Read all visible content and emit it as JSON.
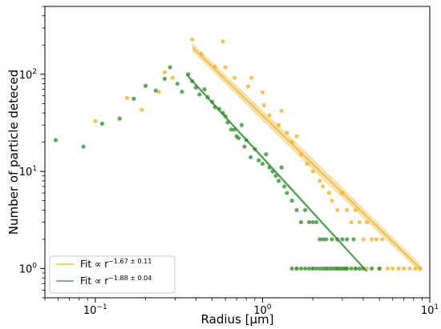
{
  "chart_data": {
    "type": "scatter",
    "title": "",
    "xlabel": "Radius [μm]",
    "ylabel": "Number of particle deteced",
    "xscale": "log",
    "yscale": "log",
    "xlim": [
      0.05,
      10
    ],
    "ylim": [
      0.5,
      500
    ],
    "x_tick_labels": [
      {
        "value": 0.1,
        "base": "10",
        "exp": "−1"
      },
      {
        "value": 1,
        "base": "10",
        "exp": "0"
      },
      {
        "value": 10,
        "base": "10",
        "exp": "1"
      }
    ],
    "y_tick_labels": [
      {
        "value": 1,
        "base": "10",
        "exp": "0"
      },
      {
        "value": 10,
        "base": "10",
        "exp": "1"
      },
      {
        "value": 100,
        "base": "10",
        "exp": "2"
      }
    ],
    "grid": false,
    "legend_position": "lower-left",
    "colors": {
      "orange": "#f0b323",
      "green": "#2e8b2e",
      "orange_band": "#f6d68e"
    },
    "series": [
      {
        "color": "orange",
        "kind": "points",
        "points": [
          [
            0.1,
            33
          ],
          [
            0.155,
            57
          ],
          [
            0.19,
            43
          ],
          [
            0.24,
            66
          ],
          [
            0.26,
            105
          ],
          [
            0.29,
            92
          ],
          [
            0.38,
            228
          ],
          [
            0.43,
            162
          ],
          [
            0.52,
            120
          ],
          [
            0.58,
            218
          ],
          [
            0.6,
            118
          ],
          [
            0.68,
            92
          ],
          [
            0.82,
            75
          ],
          [
            0.86,
            92
          ],
          [
            1.0,
            65
          ],
          [
            1.02,
            48
          ],
          [
            1.1,
            38
          ],
          [
            1.25,
            30
          ],
          [
            1.3,
            42
          ],
          [
            1.4,
            25
          ],
          [
            1.5,
            20
          ],
          [
            1.6,
            23
          ],
          [
            1.7,
            15
          ],
          [
            1.85,
            12
          ],
          [
            2.0,
            10
          ],
          [
            2.2,
            8
          ],
          [
            2.3,
            7
          ],
          [
            2.5,
            6
          ],
          [
            2.6,
            5
          ],
          [
            2.8,
            4
          ],
          [
            3.0,
            6
          ],
          [
            3.2,
            4
          ],
          [
            3.4,
            3
          ],
          [
            3.6,
            4
          ],
          [
            3.8,
            3
          ],
          [
            4.0,
            2
          ],
          [
            4.2,
            3
          ],
          [
            4.5,
            2
          ],
          [
            4.8,
            2
          ],
          [
            5.2,
            2
          ],
          [
            5.6,
            1
          ],
          [
            6.0,
            1
          ],
          [
            6.5,
            1
          ],
          [
            7.0,
            1
          ],
          [
            7.6,
            1
          ],
          [
            8.2,
            1
          ],
          [
            8.8,
            1
          ],
          [
            1.6,
            1
          ],
          [
            2.0,
            1
          ],
          [
            2.4,
            1
          ],
          [
            2.8,
            1
          ],
          [
            3.2,
            1
          ],
          [
            3.6,
            1
          ],
          [
            4.2,
            1
          ],
          [
            5.0,
            1
          ]
        ]
      },
      {
        "color": "green",
        "kind": "points",
        "points": [
          [
            0.058,
            21
          ],
          [
            0.085,
            18
          ],
          [
            0.11,
            31
          ],
          [
            0.14,
            35
          ],
          [
            0.17,
            56
          ],
          [
            0.2,
            76
          ],
          [
            0.23,
            68
          ],
          [
            0.26,
            90
          ],
          [
            0.28,
            118
          ],
          [
            0.31,
            80
          ],
          [
            0.33,
            66
          ],
          [
            0.36,
            100
          ],
          [
            0.38,
            85
          ],
          [
            0.4,
            73
          ],
          [
            0.42,
            62
          ],
          [
            0.45,
            70
          ],
          [
            0.47,
            58
          ],
          [
            0.5,
            52
          ],
          [
            0.52,
            46
          ],
          [
            0.55,
            44
          ],
          [
            0.58,
            40
          ],
          [
            0.6,
            37
          ],
          [
            0.62,
            32
          ],
          [
            0.65,
            27
          ],
          [
            0.68,
            27
          ],
          [
            0.7,
            23
          ],
          [
            0.72,
            22
          ],
          [
            0.75,
            30
          ],
          [
            0.78,
            18
          ],
          [
            0.8,
            21
          ],
          [
            0.85,
            14
          ],
          [
            0.9,
            17
          ],
          [
            0.95,
            13
          ],
          [
            1.0,
            12
          ],
          [
            1.05,
            15
          ],
          [
            1.1,
            11
          ],
          [
            1.15,
            10
          ],
          [
            1.2,
            9
          ],
          [
            1.25,
            8
          ],
          [
            1.3,
            11
          ],
          [
            1.35,
            7
          ],
          [
            1.4,
            6
          ],
          [
            1.5,
            5
          ],
          [
            1.6,
            4
          ],
          [
            1.7,
            3
          ],
          [
            1.8,
            4
          ],
          [
            1.9,
            3
          ],
          [
            2.0,
            3
          ],
          [
            2.1,
            3
          ],
          [
            2.2,
            2
          ],
          [
            2.3,
            2
          ],
          [
            2.4,
            2
          ],
          [
            2.6,
            2
          ],
          [
            2.8,
            2
          ],
          [
            3.0,
            2
          ],
          [
            3.2,
            2
          ],
          [
            3.5,
            2
          ],
          [
            1.5,
            1
          ],
          [
            1.6,
            1
          ],
          [
            1.7,
            1
          ],
          [
            1.8,
            1
          ],
          [
            1.9,
            1
          ],
          [
            2.0,
            1
          ],
          [
            2.1,
            1
          ],
          [
            2.2,
            1
          ],
          [
            2.3,
            1
          ],
          [
            2.4,
            1
          ],
          [
            2.5,
            1
          ],
          [
            2.6,
            1
          ],
          [
            2.7,
            1
          ],
          [
            2.8,
            1
          ],
          [
            2.9,
            1
          ],
          [
            3.0,
            1
          ],
          [
            3.1,
            1
          ],
          [
            3.2,
            1
          ],
          [
            3.4,
            1
          ],
          [
            3.6,
            1
          ],
          [
            3.8,
            1
          ],
          [
            4.0,
            1
          ],
          [
            4.5,
            1
          ],
          [
            5.0,
            1
          ]
        ]
      },
      {
        "name": "Fit ∝ r",
        "legend_exponent": "−1.67 ± 0.11",
        "color": "orange",
        "kind": "fit",
        "x_range": [
          0.38,
          8.8
        ],
        "y_start": 190,
        "slope": -1.67,
        "band": [
          0.11,
          0.08
        ]
      },
      {
        "name": "Fit ∝ r",
        "legend_exponent": "−1.88 ± 0.04",
        "color": "green",
        "kind": "fit",
        "x_range": [
          0.35,
          4.2
        ],
        "y_start": 100,
        "slope": -1.88,
        "band": [
          0.04,
          0.03
        ]
      }
    ]
  }
}
